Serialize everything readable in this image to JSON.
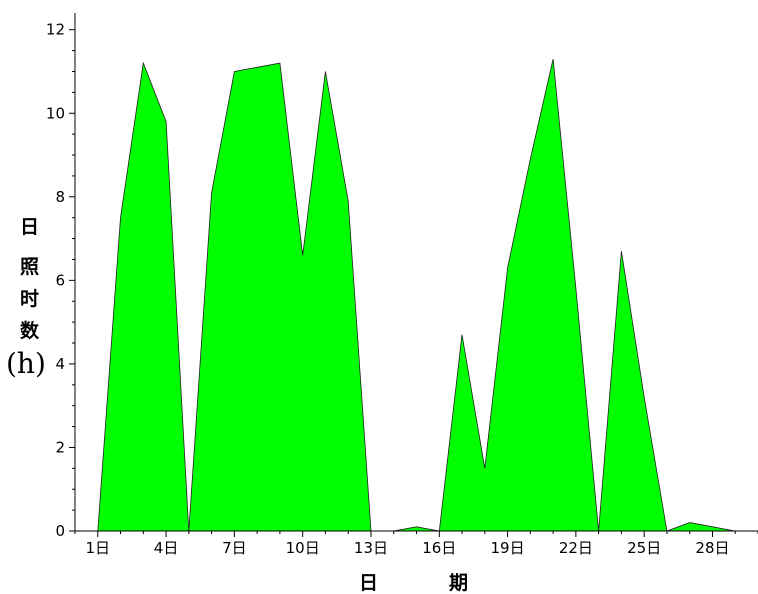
{
  "chart_data": {
    "type": "area",
    "title": "",
    "xlabel_parts": [
      "日",
      "期"
    ],
    "ylabel_parts": [
      "日",
      "照",
      "时",
      "数"
    ],
    "ylabel_unit": "(h)",
    "xlim": [
      0,
      30
    ],
    "ylim": [
      0,
      12.4
    ],
    "x_ticks": [
      {
        "value": 1,
        "label": "1日"
      },
      {
        "value": 4,
        "label": "4日"
      },
      {
        "value": 7,
        "label": "7日"
      },
      {
        "value": 10,
        "label": "10日"
      },
      {
        "value": 13,
        "label": "13日"
      },
      {
        "value": 16,
        "label": "16日"
      },
      {
        "value": 19,
        "label": "19日"
      },
      {
        "value": 22,
        "label": "22日"
      },
      {
        "value": 25,
        "label": "25日"
      },
      {
        "value": 28,
        "label": "28日"
      }
    ],
    "y_ticks": [
      {
        "value": 0,
        "label": "0"
      },
      {
        "value": 2,
        "label": "2"
      },
      {
        "value": 4,
        "label": "4"
      },
      {
        "value": 6,
        "label": "6"
      },
      {
        "value": 8,
        "label": "8"
      },
      {
        "value": 10,
        "label": "10"
      },
      {
        "value": 12,
        "label": "12"
      }
    ],
    "series": [
      {
        "x": [
          1,
          2,
          3,
          4,
          5,
          6,
          7,
          8,
          9,
          10,
          11,
          12,
          13,
          14,
          15,
          16,
          17,
          18,
          19,
          20,
          21,
          22,
          23,
          24,
          25,
          26,
          27,
          28,
          29
        ],
        "values": [
          0,
          7.5,
          11.2,
          9.8,
          0,
          8.1,
          11.0,
          11.1,
          11.2,
          6.6,
          11.0,
          7.9,
          0,
          0,
          0.1,
          0,
          4.7,
          1.5,
          6.3,
          8.9,
          11.3,
          5.8,
          0,
          6.7,
          3.2,
          0,
          0.2,
          0.1,
          0
        ]
      }
    ],
    "colors": {
      "fill": "#00ff00",
      "stroke": "#202020",
      "axis": "#000000"
    }
  }
}
